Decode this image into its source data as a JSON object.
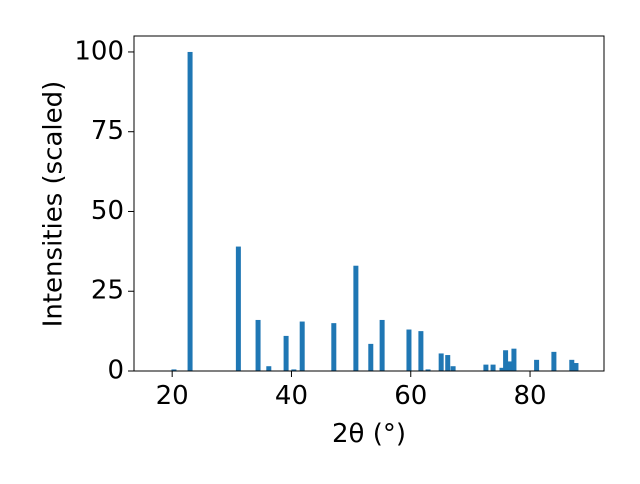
{
  "chart_data": {
    "type": "bar",
    "xlabel": "2θ (°)",
    "ylabel": "Intensities (scaled)",
    "x": [
      20.3,
      23.0,
      31.1,
      34.4,
      36.2,
      39.1,
      40.4,
      41.8,
      47.1,
      50.8,
      53.3,
      55.2,
      59.7,
      61.7,
      62.9,
      65.1,
      66.2,
      67.1,
      72.6,
      73.8,
      75.3,
      75.9,
      76.6,
      77.3,
      81.1,
      84.0,
      87.0,
      87.7
    ],
    "values": [
      0.5,
      100,
      39,
      16,
      1.5,
      11,
      0.5,
      15.5,
      15,
      33,
      8.5,
      16,
      13,
      12.5,
      0.5,
      5.5,
      5,
      1.5,
      2,
      2,
      1,
      6.5,
      3,
      7,
      3.5,
      6,
      3.5,
      2.5
    ],
    "color": "#1f77b4",
    "xlim": [
      13.6,
      92.4
    ],
    "xticks": [
      20,
      40,
      60,
      80
    ],
    "ylim": [
      0,
      105
    ],
    "yticks": [
      0,
      25,
      50,
      75,
      100
    ]
  }
}
